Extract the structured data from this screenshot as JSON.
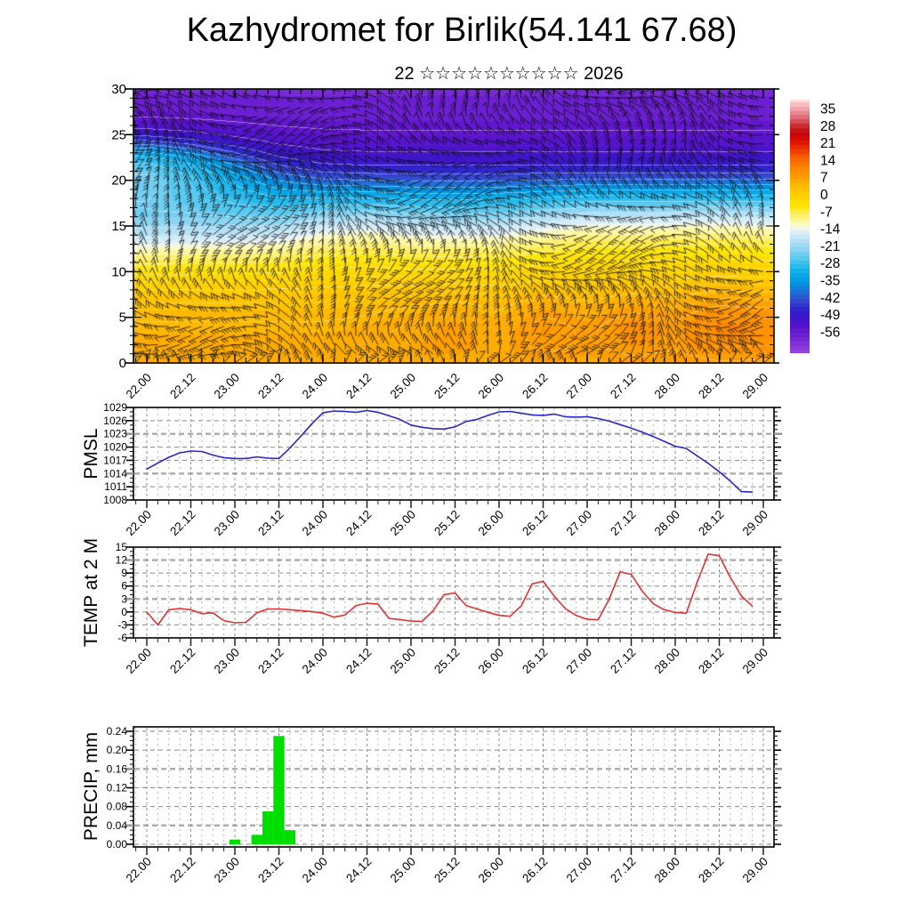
{
  "header": {
    "title": "Kazhydromet for Birlik(54.141 67.68)",
    "subtitle": "22 ☆☆☆☆☆☆☆☆☆☆ 2026"
  },
  "time_axis": {
    "labels": [
      "22.00",
      "22.12",
      "23.00",
      "23.12",
      "24.00",
      "24.12",
      "25.00",
      "25.12",
      "26.00",
      "26.12",
      "27.00",
      "27.12",
      "28.00",
      "28.12",
      "29.00"
    ],
    "label_step_hours": 12,
    "minor_step_hours": 3
  },
  "chart_data": [
    {
      "type": "heatmap",
      "title": "Temperature time-height cross-section with wind barbs",
      "x_range": [
        "22.00",
        "29.00"
      ],
      "y_km_range": [
        0,
        30
      ],
      "y_ticks": [
        30,
        25,
        20,
        15,
        10,
        5,
        0
      ],
      "quantize_step_degC": 1.75,
      "temp_profile_km_degC": [
        [
          0,
          5
        ],
        [
          2,
          5
        ],
        [
          4,
          4
        ],
        [
          6,
          2.5
        ],
        [
          8,
          0.5
        ],
        [
          10,
          -3
        ],
        [
          12,
          -8
        ],
        [
          13,
          -11
        ],
        [
          14,
          -15
        ],
        [
          15,
          -19
        ],
        [
          16,
          -23.5
        ],
        [
          17,
          -28
        ],
        [
          18,
          -32
        ],
        [
          19,
          -37
        ],
        [
          20,
          -42
        ],
        [
          21,
          -46.5
        ],
        [
          22,
          -50
        ],
        [
          24,
          -54
        ],
        [
          26,
          -56.5
        ],
        [
          28,
          -58
        ],
        [
          30,
          -59
        ]
      ],
      "minus14_boundary_km": [
        12.7,
        12.9,
        13.0,
        13.3,
        14.2,
        14.5,
        14.0,
        13.9,
        14.0,
        14.6,
        15.2,
        15.2,
        15.3,
        15.4,
        15.2,
        15.0
      ],
      "upper_cold_shift_km": [
        5,
        4,
        2.5,
        1,
        0.2,
        0,
        0,
        0,
        0,
        0,
        0,
        0,
        0,
        0,
        0,
        0
      ],
      "low_level_warm_anomaly_degC": [
        0,
        0,
        0,
        0,
        0,
        0.5,
        1.5,
        2.5,
        1.0,
        4.0,
        2.5,
        4.5,
        3.5,
        6.0,
        5.5,
        6.0
      ],
      "warm_pocket": {
        "center_km": 4.5,
        "sigma_km": 4.0
      },
      "barb_grid": {
        "dt_hours": 3,
        "dh_km": 1
      },
      "colorbar": {
        "ticks": [
          35,
          28,
          21,
          14,
          7,
          0,
          -7,
          -14,
          -21,
          -28,
          -35,
          -42,
          -49,
          -56
        ],
        "vmax": 38.5,
        "vmin": -65,
        "palette": [
          [
            38.5,
            "#ffdcdc"
          ],
          [
            35,
            "#f2a2aa"
          ],
          [
            31,
            "#de6670"
          ],
          [
            28,
            "#ca2a32"
          ],
          [
            25,
            "#c40606"
          ],
          [
            22,
            "#da0a00"
          ],
          [
            19,
            "#ea2e00"
          ],
          [
            16,
            "#f45600"
          ],
          [
            13,
            "#fa7200"
          ],
          [
            10,
            "#ff8a00"
          ],
          [
            7,
            "#ff9e00"
          ],
          [
            4,
            "#ffb600"
          ],
          [
            1,
            "#ffc800"
          ],
          [
            -2,
            "#ffd600"
          ],
          [
            -5,
            "#ffe400"
          ],
          [
            -8,
            "#ffee60"
          ],
          [
            -11,
            "#fff7a0"
          ],
          [
            -13.5,
            "#fbfbd2"
          ],
          [
            -14.5,
            "#e6f3fb"
          ],
          [
            -17,
            "#cdeaf8"
          ],
          [
            -20,
            "#aedef6"
          ],
          [
            -23,
            "#88d4f3"
          ],
          [
            -26,
            "#5ccaf0"
          ],
          [
            -29,
            "#30beee"
          ],
          [
            -32,
            "#10aeea"
          ],
          [
            -35,
            "#009ee4"
          ],
          [
            -38,
            "#0a88dc"
          ],
          [
            -41,
            "#2664d6"
          ],
          [
            -44,
            "#3444d0"
          ],
          [
            -47,
            "#2e26cc"
          ],
          [
            -50,
            "#3a16c8"
          ],
          [
            -53,
            "#4e12ca"
          ],
          [
            -56,
            "#6216ce"
          ],
          [
            -59,
            "#7426d4"
          ],
          [
            -62,
            "#8636da"
          ],
          [
            -65,
            "#9642e0"
          ]
        ]
      }
    },
    {
      "type": "line",
      "title": "PMSL",
      "color": "#2828c8",
      "x_start": "22.00",
      "x_step_hours": 3,
      "ylim": [
        1008,
        1029
      ],
      "yticks": [
        1029,
        1026,
        1023,
        1020,
        1017,
        1014,
        1011,
        1008
      ],
      "emph_gridlines": [
        1023,
        1014
      ],
      "values": [
        1015.0,
        1016.4,
        1017.7,
        1018.7,
        1019.1,
        1019.0,
        1018.2,
        1017.6,
        1017.4,
        1017.4,
        1017.8,
        1017.5,
        1017.4,
        1019.8,
        1022.5,
        1025.3,
        1027.8,
        1028.2,
        1028.1,
        1027.9,
        1028.3,
        1027.9,
        1027.1,
        1026.3,
        1025.0,
        1024.5,
        1024.2,
        1024.1,
        1024.6,
        1025.8,
        1026.3,
        1027.2,
        1028.0,
        1028.1,
        1027.7,
        1027.3,
        1027.2,
        1027.5,
        1026.9,
        1026.8,
        1026.9,
        1026.5,
        1025.9,
        1025.1,
        1024.3,
        1023.4,
        1022.4,
        1021.3,
        1020.2,
        1019.7,
        1018.0,
        1016.3,
        1014.4,
        1012.3,
        1009.9,
        1009.8
      ]
    },
    {
      "type": "line",
      "title": "TEMP at 2 M",
      "color": "#e03232",
      "x_start": "22.00",
      "x_step_hours": 3,
      "ylim": [
        -6,
        15
      ],
      "yticks": [
        15,
        12,
        9,
        6,
        3,
        0,
        -3,
        -6
      ],
      "emph_gridlines": [
        12,
        3
      ],
      "values": [
        0.0,
        -3.0,
        0.5,
        0.8,
        0.5,
        -0.4,
        -0.2,
        -2.0,
        -2.5,
        -2.4,
        -0.2,
        0.7,
        0.7,
        0.5,
        0.3,
        0.1,
        -0.3,
        -1.2,
        -0.7,
        1.5,
        2.0,
        1.8,
        -1.5,
        -1.8,
        -2.1,
        -2.2,
        0.3,
        4.0,
        4.4,
        1.5,
        0.7,
        -0.1,
        -0.8,
        -1.0,
        1.4,
        6.5,
        7.1,
        3.7,
        0.8,
        -0.8,
        -1.7,
        -1.8,
        3.0,
        9.3,
        8.7,
        4.8,
        1.9,
        0.5,
        -0.1,
        -0.3,
        7.0,
        13.4,
        13.0,
        8.0,
        3.7,
        1.4
      ]
    },
    {
      "type": "bar",
      "title": "PRECIP, mm",
      "color": "#00dd00",
      "ylim": [
        0,
        0.24
      ],
      "ytick_labels": [
        "0.24",
        "0.20",
        "0.16",
        "0.12",
        "0.08",
        "0.04",
        "0.00"
      ],
      "ytick_values": [
        0.24,
        0.2,
        0.16,
        0.12,
        0.08,
        0.04,
        0.0
      ],
      "emph_gridlines": [
        0.16,
        0.04
      ],
      "bars": [
        {
          "time": "23.00",
          "value": 0.01
        },
        {
          "time": "23.06",
          "value": 0.02
        },
        {
          "time": "23.09",
          "value": 0.07
        },
        {
          "time": "23.12",
          "value": 0.23
        },
        {
          "time": "23.15",
          "value": 0.03
        }
      ],
      "all_other_3h_totals": 0
    }
  ]
}
